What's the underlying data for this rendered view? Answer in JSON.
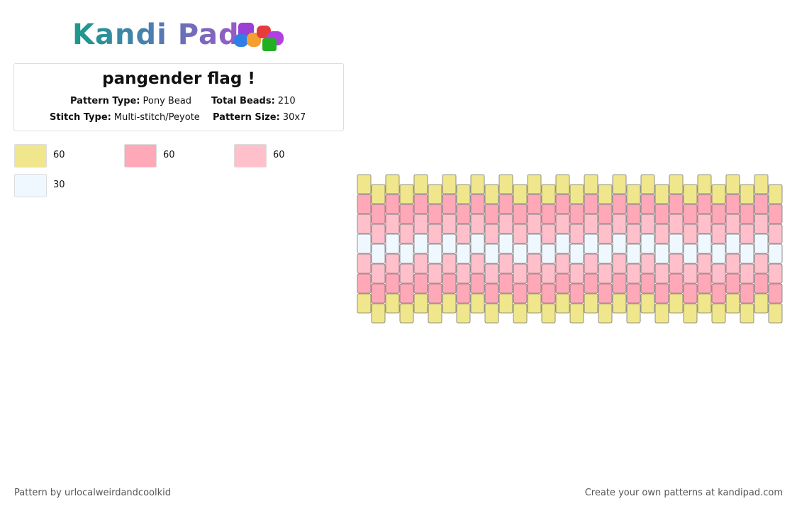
{
  "logo": "Kandi Pad",
  "title": "pangender flag !",
  "details": [
    {
      "label": "Pattern Type:",
      "value": "Pony Bead"
    },
    {
      "label": "Total Beads:",
      "value": 210
    },
    {
      "label": "Stitch Type:",
      "value": "Multi-stitch/Peyote"
    },
    {
      "label": "Pattern Size:",
      "value": "30x7"
    }
  ],
  "colors": [
    {
      "color": "#f0e68c",
      "count": 60
    },
    {
      "color": "#ffa8b8",
      "count": 60
    },
    {
      "color": "#ffc0cb",
      "count": 60
    },
    {
      "color": "#f0f8ff",
      "count": 30
    }
  ],
  "pattern_rows": [
    "#f0e68c",
    "#ffa8b8",
    "#ffc0cb",
    "#f0f8ff",
    "#ffc0cb",
    "#ffa8b8",
    "#f0e68c"
  ],
  "footer": {
    "left": "Pattern by urlocalweirdandcoolkid",
    "right": "Create your own patterns at kandipad.com"
  }
}
